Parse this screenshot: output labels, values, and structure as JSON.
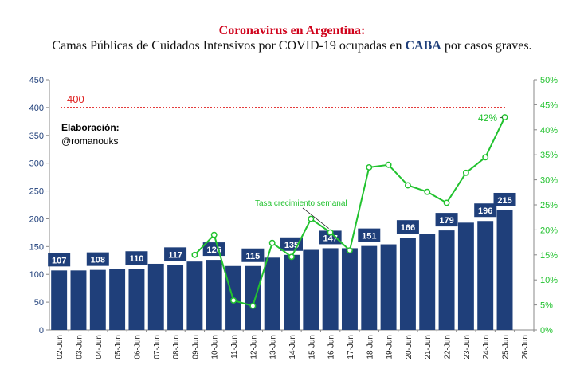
{
  "title": {
    "main": "Coronavirus en Argentina:",
    "sub_prefix": "Camas Públicas de Cuidados Intensivos por COVID-19 ocupadas en ",
    "sub_highlight": "CABA",
    "sub_suffix": " por casos graves."
  },
  "credit": {
    "line1": "Elaboración:",
    "line2": "@romanouks"
  },
  "colors": {
    "bars": "#1f3f7a",
    "line": "#22c22f",
    "reference": "#e02020",
    "title": "#d0021b"
  },
  "chart_data": {
    "type": "bar",
    "categories": [
      "02-Jun",
      "03-Jun",
      "04-Jun",
      "05-Jun",
      "06-Jun",
      "07-Jun",
      "08-Jun",
      "09-Jun",
      "10-Jun",
      "11-Jun",
      "12-Jun",
      "13-Jun",
      "14-Jun",
      "15-Jun",
      "16-Jun",
      "17-Jun",
      "18-Jun",
      "19-Jun",
      "20-Jun",
      "21-Jun",
      "22-Jun",
      "23-Jun",
      "24-Jun",
      "25-Jun",
      "26-Jun"
    ],
    "series": [
      {
        "type": "bar",
        "axis": "left",
        "values": [
          107,
          107,
          108,
          110,
          110,
          119,
          117,
          123,
          126,
          115,
          115,
          130,
          135,
          144,
          147,
          147,
          151,
          154,
          166,
          172,
          179,
          193,
          196,
          215,
          null
        ],
        "labeled": [
          107,
          null,
          108,
          null,
          110,
          null,
          117,
          null,
          126,
          null,
          115,
          null,
          135,
          null,
          147,
          null,
          151,
          null,
          166,
          null,
          179,
          null,
          196,
          215,
          null
        ]
      },
      {
        "type": "line",
        "axis": "right",
        "name": "Tasa crecimiento semanal",
        "values": [
          null,
          null,
          null,
          null,
          null,
          null,
          null,
          15.0,
          19.0,
          5.9,
          4.8,
          17.4,
          14.6,
          22.2,
          19.5,
          15.9,
          32.5,
          33.0,
          28.9,
          27.6,
          25.4,
          31.4,
          34.5,
          42.5,
          null
        ]
      }
    ],
    "y_left": {
      "min": 0,
      "max": 450,
      "ticks": [
        0,
        50,
        100,
        150,
        200,
        250,
        300,
        350,
        400,
        450
      ]
    },
    "y_right": {
      "min": 0,
      "max": 50,
      "ticks": [
        "0%",
        "5%",
        "10%",
        "15%",
        "20%",
        "25%",
        "30%",
        "35%",
        "40%",
        "45%",
        "50%"
      ]
    },
    "reference_line": {
      "value": 400,
      "label": "400"
    },
    "annotations": {
      "last_value_label": "42%",
      "series_label": "Tasa crecimiento semanal"
    },
    "xlabel": "",
    "ylabel": "",
    "grid": false
  }
}
